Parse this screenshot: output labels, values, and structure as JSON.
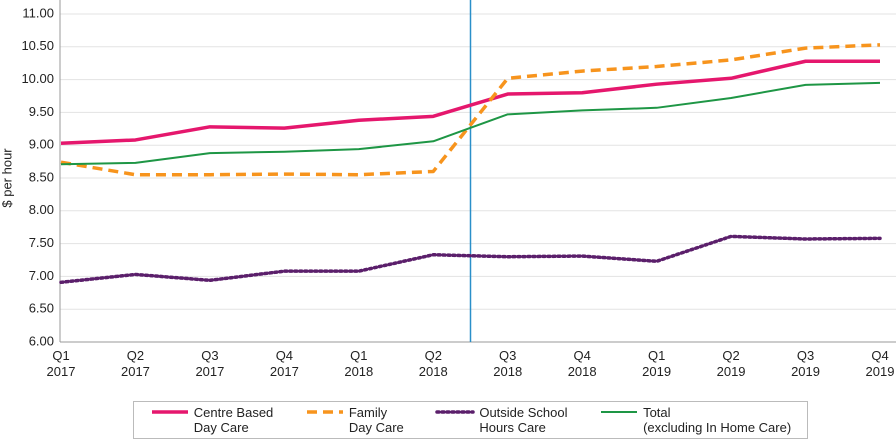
{
  "chart_data": {
    "type": "line",
    "y_label": "$ per hour",
    "categories": [
      "Q1\n2017",
      "Q2\n2017",
      "Q3\n2017",
      "Q4\n2017",
      "Q1\n2018",
      "Q2\n2018",
      "Q3\n2018",
      "Q4\n2018",
      "Q1\n2019",
      "Q2\n2019",
      "Q3\n2019",
      "Q4\n2019"
    ],
    "series": [
      {
        "name": "Centre Based\nDay Care",
        "color": "#e5176d",
        "style": "solid",
        "width": 3.5,
        "values": [
          9.03,
          9.08,
          9.28,
          9.26,
          9.38,
          9.44,
          9.78,
          9.8,
          9.93,
          10.02,
          10.28,
          10.28
        ]
      },
      {
        "name": "Family\nDay Care",
        "color": "#f7941d",
        "style": "dashed",
        "width": 3.5,
        "values": [
          8.74,
          8.55,
          8.55,
          8.56,
          8.55,
          8.6,
          10.02,
          10.13,
          10.2,
          10.3,
          10.48,
          10.53
        ]
      },
      {
        "name": "Outside School\nHours Care",
        "color": "#5b1f6b",
        "style": "dotted",
        "width": 3.5,
        "values": [
          6.91,
          7.03,
          6.94,
          7.08,
          7.08,
          7.33,
          7.3,
          7.31,
          7.23,
          7.61,
          7.57,
          7.58
        ]
      },
      {
        "name": "Total\n(excluding In Home Care)",
        "color": "#1e9645",
        "style": "solid",
        "width": 2,
        "values": [
          8.71,
          8.73,
          8.88,
          8.9,
          8.94,
          9.06,
          9.47,
          9.53,
          9.57,
          9.72,
          9.92,
          9.95
        ]
      }
    ],
    "ylim": [
      6,
      11
    ],
    "yticks": [
      {
        "value": 6,
        "label": "6.00"
      },
      {
        "value": 6.5,
        "label": "6.50"
      },
      {
        "value": 7,
        "label": "7.00"
      },
      {
        "value": 7.5,
        "label": "7.50"
      },
      {
        "value": 8,
        "label": "8.00"
      },
      {
        "value": 8.5,
        "label": "8.50"
      },
      {
        "value": 9,
        "label": "9.00"
      },
      {
        "value": 9.5,
        "label": "9.50"
      },
      {
        "value": 10,
        "label": "10.00"
      },
      {
        "value": 10.5,
        "label": "10.50"
      },
      {
        "value": 11,
        "label": "11.00"
      }
    ],
    "grid": true
  }
}
